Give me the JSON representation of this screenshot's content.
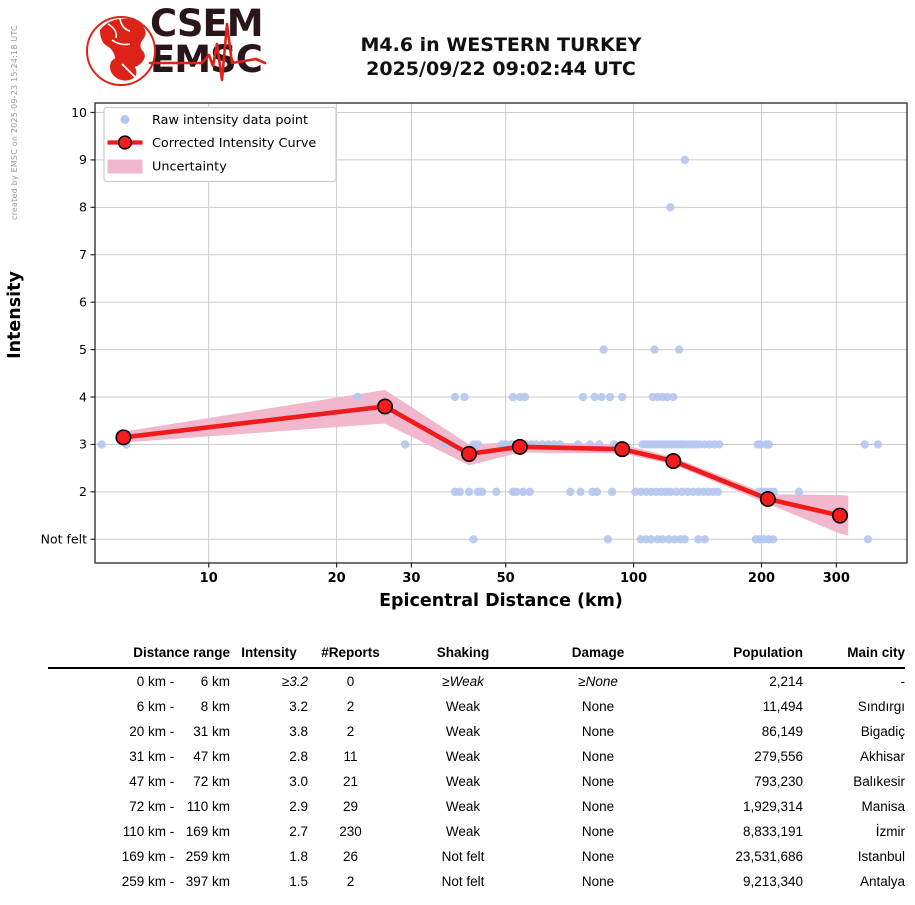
{
  "meta": {
    "created_by": "created by EMSC on 2025-09-23 15:24:18 UTC"
  },
  "logo": {
    "line1": "CSEM",
    "line2": "EMSC"
  },
  "title": {
    "line1": "M4.6 in WESTERN TURKEY",
    "line2": "2025/09/22 09:02:44 UTC"
  },
  "chart_data": {
    "type": "line",
    "x_scale": "log",
    "xlabel": "Epicentral Distance (km)",
    "ylabel": "Intensity",
    "xlim": [
      5.4,
      440
    ],
    "ylim": [
      0.5,
      10.2
    ],
    "x_ticks": [
      10,
      20,
      30,
      50,
      100,
      200,
      300
    ],
    "y_ticks": [
      1,
      2,
      3,
      4,
      5,
      6,
      7,
      8,
      9,
      10
    ],
    "y_tick_labels": [
      "Not felt",
      "2",
      "3",
      "4",
      "5",
      "6",
      "7",
      "8",
      "9",
      "10"
    ],
    "grid": true,
    "legend": {
      "position": "upper left",
      "items": [
        "Raw intensity data point",
        "Corrected Intensity Curve",
        "Uncertainty"
      ]
    },
    "colors": {
      "raw_point": "#b5c6ee",
      "curve": "#ef1a1a",
      "marker_fill": "#f41c1c",
      "marker_edge": "#000000",
      "uncertainty": "#f1b7cd",
      "grid": "#cccccc",
      "spine": "#262626",
      "text": "#000000"
    },
    "corrected_curve": {
      "x": [
        6.3,
        26,
        41,
        54,
        94,
        124,
        207,
        306
      ],
      "y": [
        3.15,
        3.8,
        2.8,
        2.95,
        2.9,
        2.65,
        1.85,
        1.5
      ]
    },
    "uncertainty_band": {
      "x": [
        6.3,
        26,
        41,
        54,
        94,
        124,
        207,
        306,
        320
      ],
      "upper": [
        3.27,
        4.15,
        3.0,
        3.06,
        3.0,
        2.73,
        1.95,
        1.93,
        1.92
      ],
      "lower": [
        3.04,
        3.44,
        2.56,
        2.83,
        2.81,
        2.58,
        1.75,
        1.12,
        1.08
      ]
    },
    "raw_points": [
      [
        132,
        9
      ],
      [
        122,
        8
      ],
      [
        85,
        5
      ],
      [
        112,
        5
      ],
      [
        128,
        5
      ],
      [
        22.4,
        4
      ],
      [
        38,
        4
      ],
      [
        40,
        4
      ],
      [
        52,
        4
      ],
      [
        54,
        4
      ],
      [
        55.5,
        4
      ],
      [
        76,
        4
      ],
      [
        81,
        4
      ],
      [
        84,
        4
      ],
      [
        88,
        4
      ],
      [
        94,
        4
      ],
      [
        111,
        4
      ],
      [
        114,
        4
      ],
      [
        117,
        4
      ],
      [
        120,
        4
      ],
      [
        124,
        4
      ],
      [
        5.6,
        3
      ],
      [
        6.4,
        3
      ],
      [
        29,
        3
      ],
      [
        36,
        3
      ],
      [
        37.5,
        3
      ],
      [
        42,
        3
      ],
      [
        43,
        3
      ],
      [
        49,
        3
      ],
      [
        50,
        3
      ],
      [
        51.5,
        3
      ],
      [
        53,
        3
      ],
      [
        54,
        3
      ],
      [
        55,
        3
      ],
      [
        56,
        3
      ],
      [
        57.5,
        3
      ],
      [
        59,
        3
      ],
      [
        61,
        3
      ],
      [
        63,
        3
      ],
      [
        65,
        3
      ],
      [
        67,
        3
      ],
      [
        74,
        3
      ],
      [
        79,
        3
      ],
      [
        83,
        3
      ],
      [
        90,
        3
      ],
      [
        105,
        3
      ],
      [
        107,
        3
      ],
      [
        109,
        3
      ],
      [
        111,
        3
      ],
      [
        113,
        3
      ],
      [
        115,
        3
      ],
      [
        117,
        3
      ],
      [
        119,
        3
      ],
      [
        121,
        3
      ],
      [
        123,
        3
      ],
      [
        125,
        3
      ],
      [
        127,
        3
      ],
      [
        129,
        3
      ],
      [
        131,
        3
      ],
      [
        134,
        3
      ],
      [
        137,
        3
      ],
      [
        140,
        3
      ],
      [
        143,
        3
      ],
      [
        147,
        3
      ],
      [
        151,
        3
      ],
      [
        155,
        3
      ],
      [
        159,
        3
      ],
      [
        196,
        3
      ],
      [
        199,
        3
      ],
      [
        205,
        3
      ],
      [
        208,
        3
      ],
      [
        350,
        3
      ],
      [
        376,
        3
      ],
      [
        38,
        2
      ],
      [
        39,
        2
      ],
      [
        41,
        2
      ],
      [
        43,
        2
      ],
      [
        44,
        2
      ],
      [
        47.5,
        2
      ],
      [
        52,
        2
      ],
      [
        53,
        2
      ],
      [
        55,
        2
      ],
      [
        57,
        2
      ],
      [
        71,
        2
      ],
      [
        75,
        2
      ],
      [
        80,
        2
      ],
      [
        82,
        2
      ],
      [
        89,
        2
      ],
      [
        101,
        2
      ],
      [
        104,
        2
      ],
      [
        107,
        2
      ],
      [
        110,
        2
      ],
      [
        113,
        2
      ],
      [
        116,
        2
      ],
      [
        119,
        2
      ],
      [
        122,
        2
      ],
      [
        126,
        2
      ],
      [
        130,
        2
      ],
      [
        134,
        2
      ],
      [
        138,
        2
      ],
      [
        142,
        2
      ],
      [
        146,
        2
      ],
      [
        150,
        2
      ],
      [
        154,
        2
      ],
      [
        158,
        2
      ],
      [
        197,
        2
      ],
      [
        201,
        2
      ],
      [
        205,
        2
      ],
      [
        209,
        2
      ],
      [
        214,
        2
      ],
      [
        245,
        2
      ],
      [
        42,
        1
      ],
      [
        87,
        1
      ],
      [
        104,
        1
      ],
      [
        107,
        1
      ],
      [
        110,
        1
      ],
      [
        114,
        1
      ],
      [
        117,
        1
      ],
      [
        121,
        1
      ],
      [
        125,
        1
      ],
      [
        129,
        1
      ],
      [
        132,
        1
      ],
      [
        142,
        1
      ],
      [
        147,
        1
      ],
      [
        194,
        1
      ],
      [
        198,
        1
      ],
      [
        203,
        1
      ],
      [
        208,
        1
      ],
      [
        213,
        1
      ],
      [
        356,
        1
      ]
    ]
  },
  "table": {
    "headers": [
      "Distance range",
      "Intensity",
      "#Reports",
      "Shaking",
      "Damage",
      "Population",
      "Main city"
    ],
    "rows": [
      {
        "from": "0 km",
        "to": "6 km",
        "intensity": "≥3.2",
        "reports": "0",
        "shaking": "≥Weak",
        "damage": "≥None",
        "population": "2,214",
        "city": "-"
      },
      {
        "from": "6 km",
        "to": "8 km",
        "intensity": "3.2",
        "reports": "2",
        "shaking": "Weak",
        "damage": "None",
        "population": "11,494",
        "city": "Sındırgı"
      },
      {
        "from": "20 km",
        "to": "31 km",
        "intensity": "3.8",
        "reports": "2",
        "shaking": "Weak",
        "damage": "None",
        "population": "86,149",
        "city": "Bigadiç"
      },
      {
        "from": "31 km",
        "to": "47 km",
        "intensity": "2.8",
        "reports": "11",
        "shaking": "Weak",
        "damage": "None",
        "population": "279,556",
        "city": "Akhisar"
      },
      {
        "from": "47 km",
        "to": "72 km",
        "intensity": "3.0",
        "reports": "21",
        "shaking": "Weak",
        "damage": "None",
        "population": "793,230",
        "city": "Balıkesir"
      },
      {
        "from": "72 km",
        "to": "110 km",
        "intensity": "2.9",
        "reports": "29",
        "shaking": "Weak",
        "damage": "None",
        "population": "1,929,314",
        "city": "Manisa"
      },
      {
        "from": "110 km",
        "to": "169 km",
        "intensity": "2.7",
        "reports": "230",
        "shaking": "Weak",
        "damage": "None",
        "population": "8,833,191",
        "city": "İzmir"
      },
      {
        "from": "169 km",
        "to": "259 km",
        "intensity": "1.8",
        "reports": "26",
        "shaking": "Not felt",
        "damage": "None",
        "population": "23,531,686",
        "city": "Istanbul"
      },
      {
        "from": "259 km",
        "to": "397 km",
        "intensity": "1.5",
        "reports": "2",
        "shaking": "Not felt",
        "damage": "None",
        "population": "9,213,340",
        "city": "Antalya"
      }
    ]
  }
}
